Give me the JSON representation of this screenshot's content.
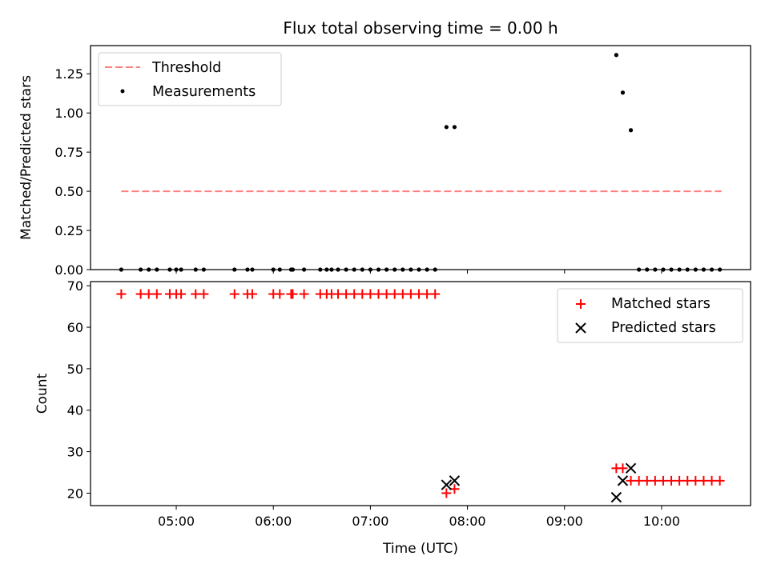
{
  "chart_data": [
    {
      "type": "scatter",
      "title": "Flux total observing time = 0.00 h",
      "xlabel": "",
      "ylabel": "Matched/Predicted stars",
      "xlim": [
        "04:07",
        "10:55"
      ],
      "ylim": [
        0,
        1.43
      ],
      "yticks": [
        0.0,
        0.25,
        0.5,
        0.75,
        1.0,
        1.25
      ],
      "ytick_labels": [
        "0.00",
        "0.25",
        "0.50",
        "0.75",
        "1.00",
        "1.25"
      ],
      "legend": {
        "position": "upper left",
        "entries": [
          "Threshold",
          "Measurements"
        ]
      },
      "series": [
        {
          "name": "Threshold",
          "style": "dashed-line",
          "color": "#ff7f7f",
          "x": [
            "04:26",
            "10:37"
          ],
          "y": [
            0.5,
            0.5
          ]
        },
        {
          "name": "Measurements",
          "style": "dot",
          "color": "#000000",
          "x": [
            "04:26",
            "04:38",
            "04:43",
            "04:48",
            "04:56",
            "05:00",
            "05:03",
            "05:12",
            "05:17",
            "05:36",
            "05:44",
            "05:47",
            "06:00",
            "06:04",
            "06:11",
            "06:12",
            "06:19",
            "06:29",
            "06:33",
            "06:36",
            "06:40",
            "06:45",
            "06:50",
            "06:55",
            "07:00",
            "07:05",
            "07:10",
            "07:15",
            "07:20",
            "07:25",
            "07:30",
            "07:35",
            "07:40",
            "07:47",
            "07:52",
            "09:32",
            "09:36",
            "09:41",
            "09:46",
            "09:51",
            "09:56",
            "10:01",
            "10:06",
            "10:11",
            "10:16",
            "10:21",
            "10:26",
            "10:31",
            "10:36"
          ],
          "y": [
            0,
            0,
            0,
            0,
            0,
            0,
            0,
            0,
            0,
            0,
            0,
            0,
            0,
            0,
            0,
            0,
            0,
            0,
            0,
            0,
            0,
            0,
            0,
            0,
            0,
            0,
            0,
            0,
            0,
            0,
            0,
            0,
            0,
            0.91,
            0.91,
            1.37,
            1.13,
            0.89,
            0,
            0,
            0,
            0,
            0,
            0,
            0,
            0,
            0,
            0,
            0
          ]
        }
      ]
    },
    {
      "type": "scatter",
      "title": "",
      "xlabel": "Time (UTC)",
      "ylabel": "Count",
      "xlim": [
        "04:07",
        "10:55"
      ],
      "ylim": [
        17,
        71
      ],
      "yticks": [
        20,
        30,
        40,
        50,
        60,
        70
      ],
      "ytick_labels": [
        "20",
        "30",
        "40",
        "50",
        "60",
        "70"
      ],
      "xticks": [
        "05:00",
        "06:00",
        "07:00",
        "08:00",
        "09:00",
        "10:00"
      ],
      "xtick_labels": [
        "05:00",
        "06:00",
        "07:00",
        "08:00",
        "09:00",
        "10:00"
      ],
      "legend": {
        "position": "upper right",
        "entries": [
          "Matched stars",
          "Predicted stars"
        ]
      },
      "series": [
        {
          "name": "Matched stars",
          "marker": "plus",
          "color": "#ff0000",
          "x": [
            "04:26",
            "04:38",
            "04:43",
            "04:48",
            "04:56",
            "05:00",
            "05:03",
            "05:12",
            "05:17",
            "05:36",
            "05:44",
            "05:47",
            "06:00",
            "06:04",
            "06:11",
            "06:12",
            "06:19",
            "06:29",
            "06:33",
            "06:36",
            "06:40",
            "06:45",
            "06:50",
            "06:55",
            "07:00",
            "07:05",
            "07:10",
            "07:15",
            "07:20",
            "07:25",
            "07:30",
            "07:35",
            "07:40",
            "07:47",
            "07:52",
            "09:32",
            "09:36",
            "09:41",
            "09:46",
            "09:51",
            "09:56",
            "10:01",
            "10:06",
            "10:11",
            "10:16",
            "10:21",
            "10:26",
            "10:31",
            "10:36"
          ],
          "y": [
            68,
            68,
            68,
            68,
            68,
            68,
            68,
            68,
            68,
            68,
            68,
            68,
            68,
            68,
            68,
            68,
            68,
            68,
            68,
            68,
            68,
            68,
            68,
            68,
            68,
            68,
            68,
            68,
            68,
            68,
            68,
            68,
            68,
            20,
            21,
            26,
            26,
            23,
            23,
            23,
            23,
            23,
            23,
            23,
            23,
            23,
            23,
            23,
            23
          ]
        },
        {
          "name": "Predicted stars",
          "marker": "x",
          "color": "#000000",
          "x": [
            "07:47",
            "07:52",
            "09:32",
            "09:36",
            "09:41"
          ],
          "y": [
            22,
            23,
            19,
            23,
            26
          ]
        }
      ]
    }
  ]
}
